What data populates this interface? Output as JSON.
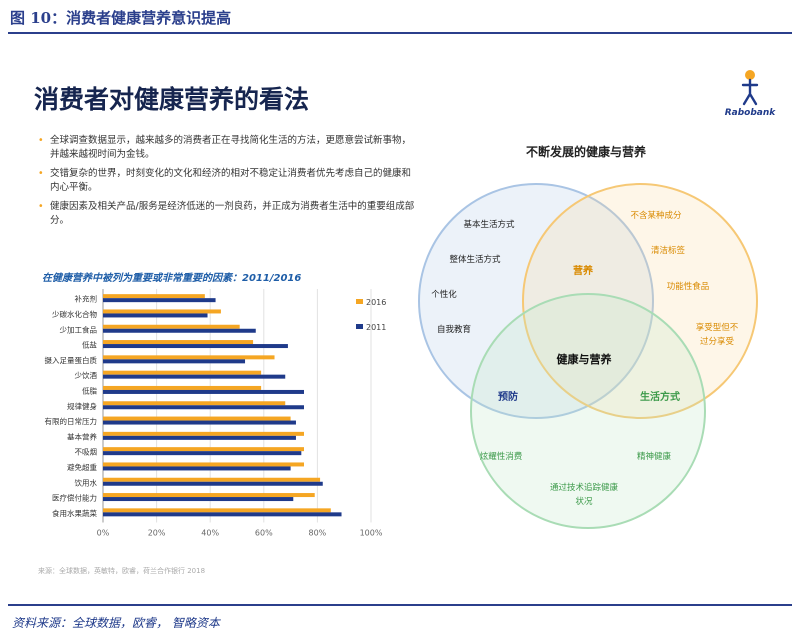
{
  "header": {
    "figure_title": "图 10：消费者健康营养意识提高"
  },
  "slide": {
    "title": "消费者对健康营养的看法",
    "logo_text": "Rabobank",
    "bullets": [
      "全球调查数据显示，越来越多的消费者正在寻找简化生活的方法，更愿意尝试新事物，并越来越视时间为金钱。",
      "交错复杂的世界，时刻变化的文化和经济的相对不稳定让消费者优先考虑自己的健康和内心平衡。",
      "健康因素及相关产品/服务是经济低迷的一剂良药，并正成为消费者生活中的重要组成部分。"
    ],
    "source_note": "来源：全球数据，英敏特，欧睿，荷兰合作银行 2018"
  },
  "footer": {
    "source": "资料来源：全球数据，欧睿， 智略资本"
  },
  "colors": {
    "series_2016": "#f5a623",
    "series_2011": "#1f3a8a",
    "title_blue": "#2b3f8c"
  },
  "chart_data": [
    {
      "type": "bar",
      "orientation": "horizontal",
      "title": "在健康营养中被列为重要或非常重要的因素：2011/2016",
      "categories": [
        "补充剂",
        "少碳水化合物",
        "少加工食品",
        "低盐",
        "摄入足量蛋白质",
        "少饮酒",
        "低脂",
        "规律健身",
        "有限的日常压力",
        "基本营养",
        "不吸烟",
        "避免超重",
        "饮用水",
        "医疗偿付能力",
        "食用水果蔬菜"
      ],
      "series": [
        {
          "name": "2016",
          "values": [
            38,
            44,
            51,
            56,
            64,
            59,
            59,
            68,
            70,
            75,
            75,
            75,
            81,
            79,
            85
          ]
        },
        {
          "name": "2011",
          "values": [
            42,
            39,
            57,
            69,
            53,
            68,
            75,
            75,
            72,
            72,
            74,
            70,
            82,
            71,
            89
          ]
        }
      ],
      "x_ticks": [
        "0%",
        "20%",
        "40%",
        "60%",
        "80%",
        "100%"
      ],
      "xlim": [
        0,
        100
      ],
      "legend": "right"
    },
    {
      "type": "venn",
      "title": "不断发展的健康与营养",
      "circles": [
        "营养",
        "生活方式",
        "预防"
      ],
      "center": "健康与营养",
      "labels": [
        "基本生活方式",
        "整体生活方式",
        "个性化",
        "自我教育",
        "不含某种成分",
        "清洁标签",
        "功能性食品",
        "享受型但不过分享受",
        "炫耀性消费",
        "精神健康",
        "通过技术追踪健康状况"
      ]
    }
  ]
}
